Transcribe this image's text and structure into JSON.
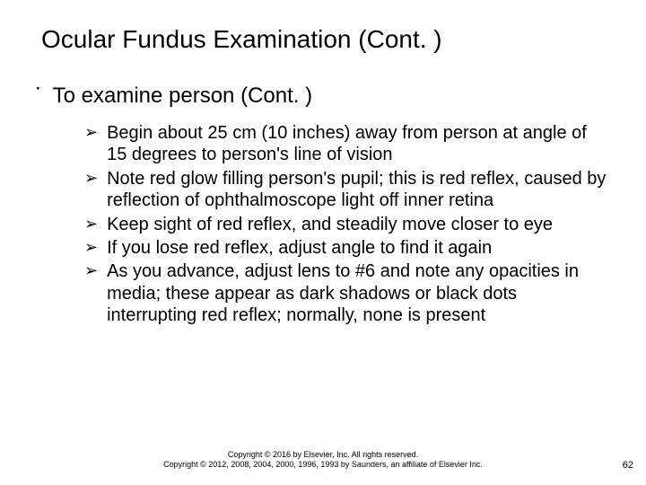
{
  "title": "Ocular Fundus Examination (Cont. )",
  "level1": {
    "bullet": "་",
    "text": "To examine person (Cont. )"
  },
  "level2_bullet": "➢",
  "items": [
    "Begin about 25 cm (10 inches) away from person at angle of 15 degrees to person's line of vision",
    "Note red glow filling person's pupil; this is red reflex, caused by reflection of ophthalmoscope light off inner retina",
    "Keep sight of red reflex, and steadily move closer to eye",
    "If you lose red reflex, adjust angle to find it again",
    "As you advance, adjust lens to #6 and note any opacities in media; these appear as dark shadows or black dots interrupting red reflex; normally, none is present"
  ],
  "footer": {
    "line1": "Copyright © 2016 by Elsevier, Inc. All rights reserved.",
    "line2": "Copyright © 2012, 2008, 2004, 2000, 1996, 1993 by Saunders, an affiliate of Elsevier Inc."
  },
  "page_number": "62",
  "colors": {
    "background": "#ffffff",
    "text": "#000000"
  },
  "typography": {
    "title_fontsize": 28,
    "level1_fontsize": 24,
    "level2_fontsize": 20,
    "footer_fontsize": 9,
    "pagenum_fontsize": 11
  }
}
